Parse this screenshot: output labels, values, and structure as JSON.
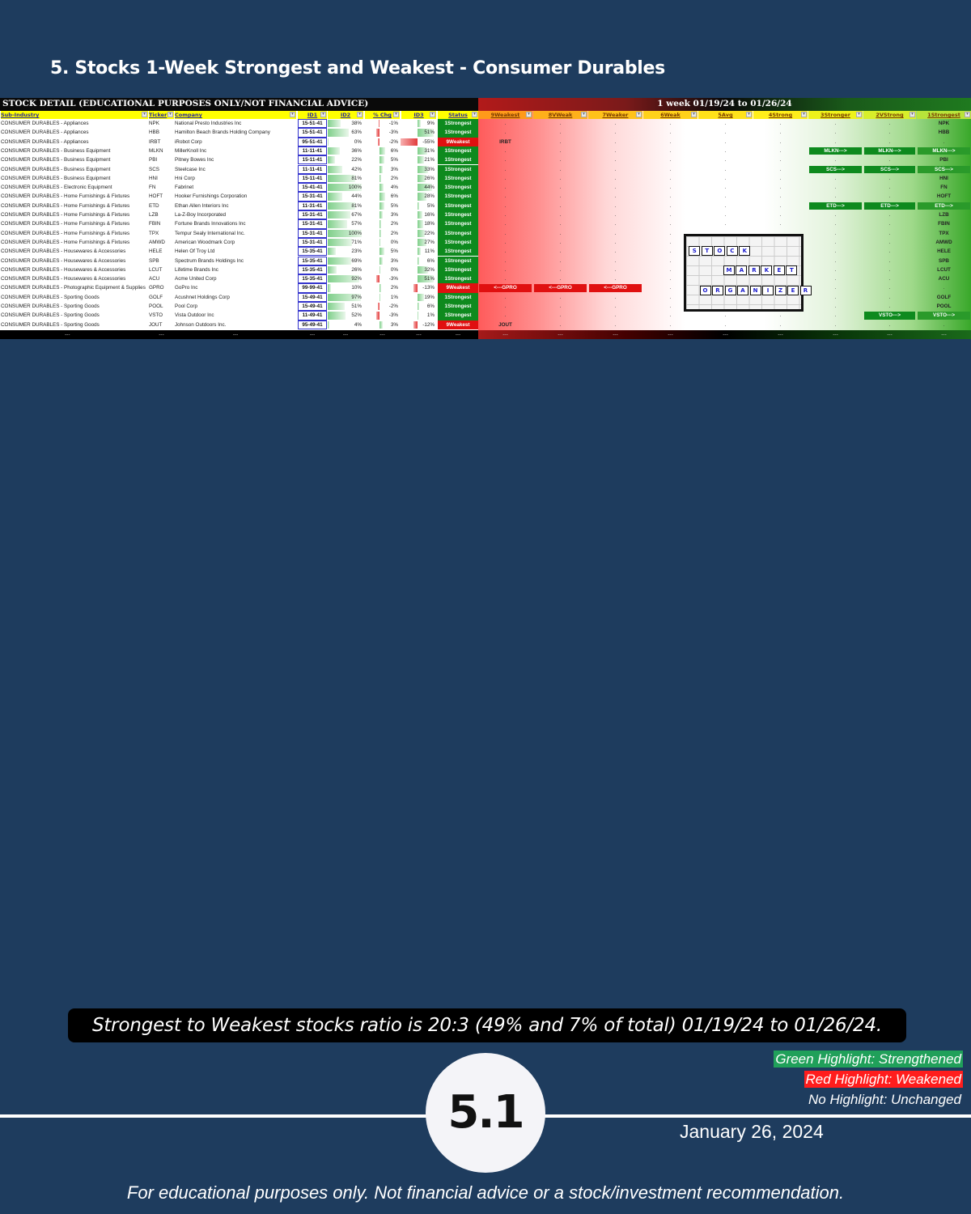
{
  "page_title": "5. Stocks 1-Week Strongest and Weakest - Consumer Durables",
  "sheet": {
    "title_left": "STOCK DETAIL (EDUCATIONAL PURPOSES ONLY/NOT FINANCIAL ADVICE)",
    "title_right": "1 week 01/19/24 to 01/26/24",
    "columns": [
      "Sub-Industry",
      "Ticker",
      "Company",
      "ID1",
      "ID2",
      "% Chg",
      "ID3",
      "Status",
      "9Weakest",
      "8VWeak",
      "7Weaker",
      "6Weak",
      "5Avg",
      "4Strong",
      "3Stronger",
      "2VStrong",
      "1Strongest"
    ],
    "rows": [
      {
        "sub": "CONSUMER DURABLES - Appliances",
        "ticker": "NPK",
        "company": "National Presto Industries Inc",
        "id1": "15-51-41",
        "id2": "38%",
        "id2_v": 0.38,
        "chg": "-1%",
        "chg_v": -1,
        "id3": "9%",
        "id3_v": 9,
        "status": "1Strongest",
        "weak": "",
        "arrow": "",
        "arrow_col": ""
      },
      {
        "sub": "CONSUMER DURABLES - Appliances",
        "ticker": "HBB",
        "company": "Hamilton Beach Brands Holding Company",
        "id1": "15-51-41",
        "id2": "63%",
        "id2_v": 0.63,
        "chg": "-3%",
        "chg_v": -3,
        "id3": "51%",
        "id3_v": 51,
        "status": "1Strongest",
        "weak": "",
        "arrow": "",
        "arrow_col": ""
      },
      {
        "sub": "CONSUMER DURABLES - Appliances",
        "ticker": "IRBT",
        "company": "iRobot Corp",
        "id1": "95-51-41",
        "id2": "0%",
        "id2_v": 0,
        "chg": "-2%",
        "chg_v": -2,
        "id3": "-55%",
        "id3_v": -55,
        "status": "9Weakest",
        "weak": "IRBT",
        "arrow": "",
        "arrow_col": ""
      },
      {
        "sub": "CONSUMER DURABLES - Business Equipment",
        "ticker": "MLKN",
        "company": "MillerKnoll Inc",
        "id1": "11-11-41",
        "id2": "36%",
        "id2_v": 0.36,
        "chg": "6%",
        "chg_v": 6,
        "id3": "31%",
        "id3_v": 31,
        "status": "1Strongest",
        "weak": "",
        "arrow": "MLKN--->",
        "arrow_col": "strong3"
      },
      {
        "sub": "CONSUMER DURABLES - Business Equipment",
        "ticker": "PBI",
        "company": "Pitney Bowes Inc",
        "id1": "15-11-41",
        "id2": "22%",
        "id2_v": 0.22,
        "chg": "5%",
        "chg_v": 5,
        "id3": "21%",
        "id3_v": 21,
        "status": "1Strongest",
        "weak": "",
        "arrow": "",
        "arrow_col": ""
      },
      {
        "sub": "CONSUMER DURABLES - Business Equipment",
        "ticker": "SCS",
        "company": "Steelcase Inc",
        "id1": "11-11-41",
        "id2": "42%",
        "id2_v": 0.42,
        "chg": "3%",
        "chg_v": 3,
        "id3": "33%",
        "id3_v": 33,
        "status": "1Strongest",
        "weak": "",
        "arrow": "SCS--->",
        "arrow_col": "strong3"
      },
      {
        "sub": "CONSUMER DURABLES - Business Equipment",
        "ticker": "HNI",
        "company": "Hni Corp",
        "id1": "15-11-41",
        "id2": "81%",
        "id2_v": 0.81,
        "chg": "2%",
        "chg_v": 2,
        "id3": "26%",
        "id3_v": 26,
        "status": "1Strongest",
        "weak": "",
        "arrow": "",
        "arrow_col": ""
      },
      {
        "sub": "CONSUMER DURABLES - Electronic Equipment",
        "ticker": "FN",
        "company": "Fabrinet",
        "id1": "15-41-41",
        "id2": "100%",
        "id2_v": 1.0,
        "chg": "4%",
        "chg_v": 4,
        "id3": "44%",
        "id3_v": 44,
        "status": "1Strongest",
        "weak": "",
        "arrow": "",
        "arrow_col": ""
      },
      {
        "sub": "CONSUMER DURABLES - Home Furnishings & Fixtures",
        "ticker": "HOFT",
        "company": "Hooker Furnishings Corporation",
        "id1": "15-31-41",
        "id2": "44%",
        "id2_v": 0.44,
        "chg": "6%",
        "chg_v": 6,
        "id3": "28%",
        "id3_v": 28,
        "status": "1Strongest",
        "weak": "",
        "arrow": "",
        "arrow_col": ""
      },
      {
        "sub": "CONSUMER DURABLES - Home Furnishings & Fixtures",
        "ticker": "ETD",
        "company": "Ethan Allen Interiors Inc",
        "id1": "11-31-41",
        "id2": "81%",
        "id2_v": 0.81,
        "chg": "5%",
        "chg_v": 5,
        "id3": "5%",
        "id3_v": 5,
        "status": "1Strongest",
        "weak": "",
        "arrow": "ETD--->",
        "arrow_col": "strong3"
      },
      {
        "sub": "CONSUMER DURABLES - Home Furnishings & Fixtures",
        "ticker": "LZB",
        "company": "La-Z-Boy Incorporated",
        "id1": "15-31-41",
        "id2": "67%",
        "id2_v": 0.67,
        "chg": "3%",
        "chg_v": 3,
        "id3": "16%",
        "id3_v": 16,
        "status": "1Strongest",
        "weak": "",
        "arrow": "",
        "arrow_col": ""
      },
      {
        "sub": "CONSUMER DURABLES - Home Furnishings & Fixtures",
        "ticker": "FBIN",
        "company": "Fortune Brands Innovations Inc",
        "id1": "15-31-41",
        "id2": "57%",
        "id2_v": 0.57,
        "chg": "2%",
        "chg_v": 2,
        "id3": "18%",
        "id3_v": 18,
        "status": "1Strongest",
        "weak": "",
        "arrow": "",
        "arrow_col": ""
      },
      {
        "sub": "CONSUMER DURABLES - Home Furnishings & Fixtures",
        "ticker": "TPX",
        "company": "Tempur Sealy International Inc.",
        "id1": "15-31-41",
        "id2": "100%",
        "id2_v": 1.0,
        "chg": "2%",
        "chg_v": 2,
        "id3": "22%",
        "id3_v": 22,
        "status": "1Strongest",
        "weak": "",
        "arrow": "",
        "arrow_col": ""
      },
      {
        "sub": "CONSUMER DURABLES - Home Furnishings & Fixtures",
        "ticker": "AMWD",
        "company": "American Woodmark Corp",
        "id1": "15-31-41",
        "id2": "71%",
        "id2_v": 0.71,
        "chg": "0%",
        "chg_v": 0,
        "id3": "27%",
        "id3_v": 27,
        "status": "1Strongest",
        "weak": "",
        "arrow": "",
        "arrow_col": ""
      },
      {
        "sub": "CONSUMER DURABLES - Housewares & Accessories",
        "ticker": "HELE",
        "company": "Helen Of Troy Ltd",
        "id1": "15-35-41",
        "id2": "23%",
        "id2_v": 0.23,
        "chg": "5%",
        "chg_v": 5,
        "id3": "11%",
        "id3_v": 11,
        "status": "1Strongest",
        "weak": "",
        "arrow": "",
        "arrow_col": ""
      },
      {
        "sub": "CONSUMER DURABLES - Housewares & Accessories",
        "ticker": "SPB",
        "company": "Spectrum Brands Holdings Inc",
        "id1": "15-35-41",
        "id2": "69%",
        "id2_v": 0.69,
        "chg": "3%",
        "chg_v": 3,
        "id3": "6%",
        "id3_v": 6,
        "status": "1Strongest",
        "weak": "",
        "arrow": "",
        "arrow_col": ""
      },
      {
        "sub": "CONSUMER DURABLES - Housewares & Accessories",
        "ticker": "LCUT",
        "company": "Lifetime Brands Inc",
        "id1": "15-35-41",
        "id2": "26%",
        "id2_v": 0.26,
        "chg": "0%",
        "chg_v": 0,
        "id3": "32%",
        "id3_v": 32,
        "status": "1Strongest",
        "weak": "",
        "arrow": "",
        "arrow_col": ""
      },
      {
        "sub": "CONSUMER DURABLES - Housewares & Accessories",
        "ticker": "ACU",
        "company": "Acme United Corp",
        "id1": "15-35-41",
        "id2": "92%",
        "id2_v": 0.92,
        "chg": "-3%",
        "chg_v": -3,
        "id3": "51%",
        "id3_v": 51,
        "status": "1Strongest",
        "weak": "",
        "arrow": "",
        "arrow_col": ""
      },
      {
        "sub": "CONSUMER DURABLES - Photographic Equipment & Supplies",
        "ticker": "GPRO",
        "company": "GoPro Inc",
        "id1": "99-99-41",
        "id2": "10%",
        "id2_v": 0.1,
        "chg": "2%",
        "chg_v": 2,
        "id3": "-13%",
        "id3_v": -13,
        "status": "9Weakest",
        "weak": "",
        "arrow": "<---GPRO",
        "arrow_col": "weak"
      },
      {
        "sub": "CONSUMER DURABLES - Sporting Goods",
        "ticker": "GOLF",
        "company": "Acushnet Holdings Corp",
        "id1": "15-49-41",
        "id2": "97%",
        "id2_v": 0.97,
        "chg": "1%",
        "chg_v": 1,
        "id3": "19%",
        "id3_v": 19,
        "status": "1Strongest",
        "weak": "",
        "arrow": "",
        "arrow_col": ""
      },
      {
        "sub": "CONSUMER DURABLES - Sporting Goods",
        "ticker": "POOL",
        "company": "Pool Corp",
        "id1": "15-49-41",
        "id2": "51%",
        "id2_v": 0.51,
        "chg": "-2%",
        "chg_v": -2,
        "id3": "6%",
        "id3_v": 6,
        "status": "1Strongest",
        "weak": "",
        "arrow": "",
        "arrow_col": ""
      },
      {
        "sub": "CONSUMER DURABLES - Sporting Goods",
        "ticker": "VSTO",
        "company": "Vista Outdoor Inc",
        "id1": "11-49-41",
        "id2": "52%",
        "id2_v": 0.52,
        "chg": "-3%",
        "chg_v": -3,
        "id3": "1%",
        "id3_v": 1,
        "status": "1Strongest",
        "weak": "",
        "arrow": "VSTO--->",
        "arrow_col": "strong2"
      },
      {
        "sub": "CONSUMER DURABLES - Sporting Goods",
        "ticker": "JOUT",
        "company": "Johnson Outdoors Inc.",
        "id1": "95-49-41",
        "id2": "4%",
        "id2_v": 0.04,
        "chg": "3%",
        "chg_v": 3,
        "id3": "-12%",
        "id3_v": -12,
        "status": "9Weakest",
        "weak": "JOUT",
        "arrow": "",
        "arrow_col": ""
      }
    ],
    "footer_dash": "---",
    "logo_words": [
      "STOCK",
      "MARKET",
      "ORGANIZER"
    ]
  },
  "ratio_text": "Strongest to Weakest stocks ratio is 20:3 (49% and 7% of total) 01/19/24 to 01/26/24.",
  "legend": {
    "green": "Green Highlight: Strengthened",
    "red": "Red Highlight: Weakened",
    "none": "No Highlight: Unchanged"
  },
  "section_number": "5.1",
  "date": "January 26, 2024",
  "disclaimer": "For educational purposes only. Not financial advice or a stock/investment recommendation.",
  "colors": {
    "background": "#1e3c5e",
    "strongest": "#0e8a1e",
    "weakest": "#e01010",
    "header_yellow": "#ffff00",
    "legend_green": "#20a05a",
    "legend_red": "#ff1d1d"
  }
}
